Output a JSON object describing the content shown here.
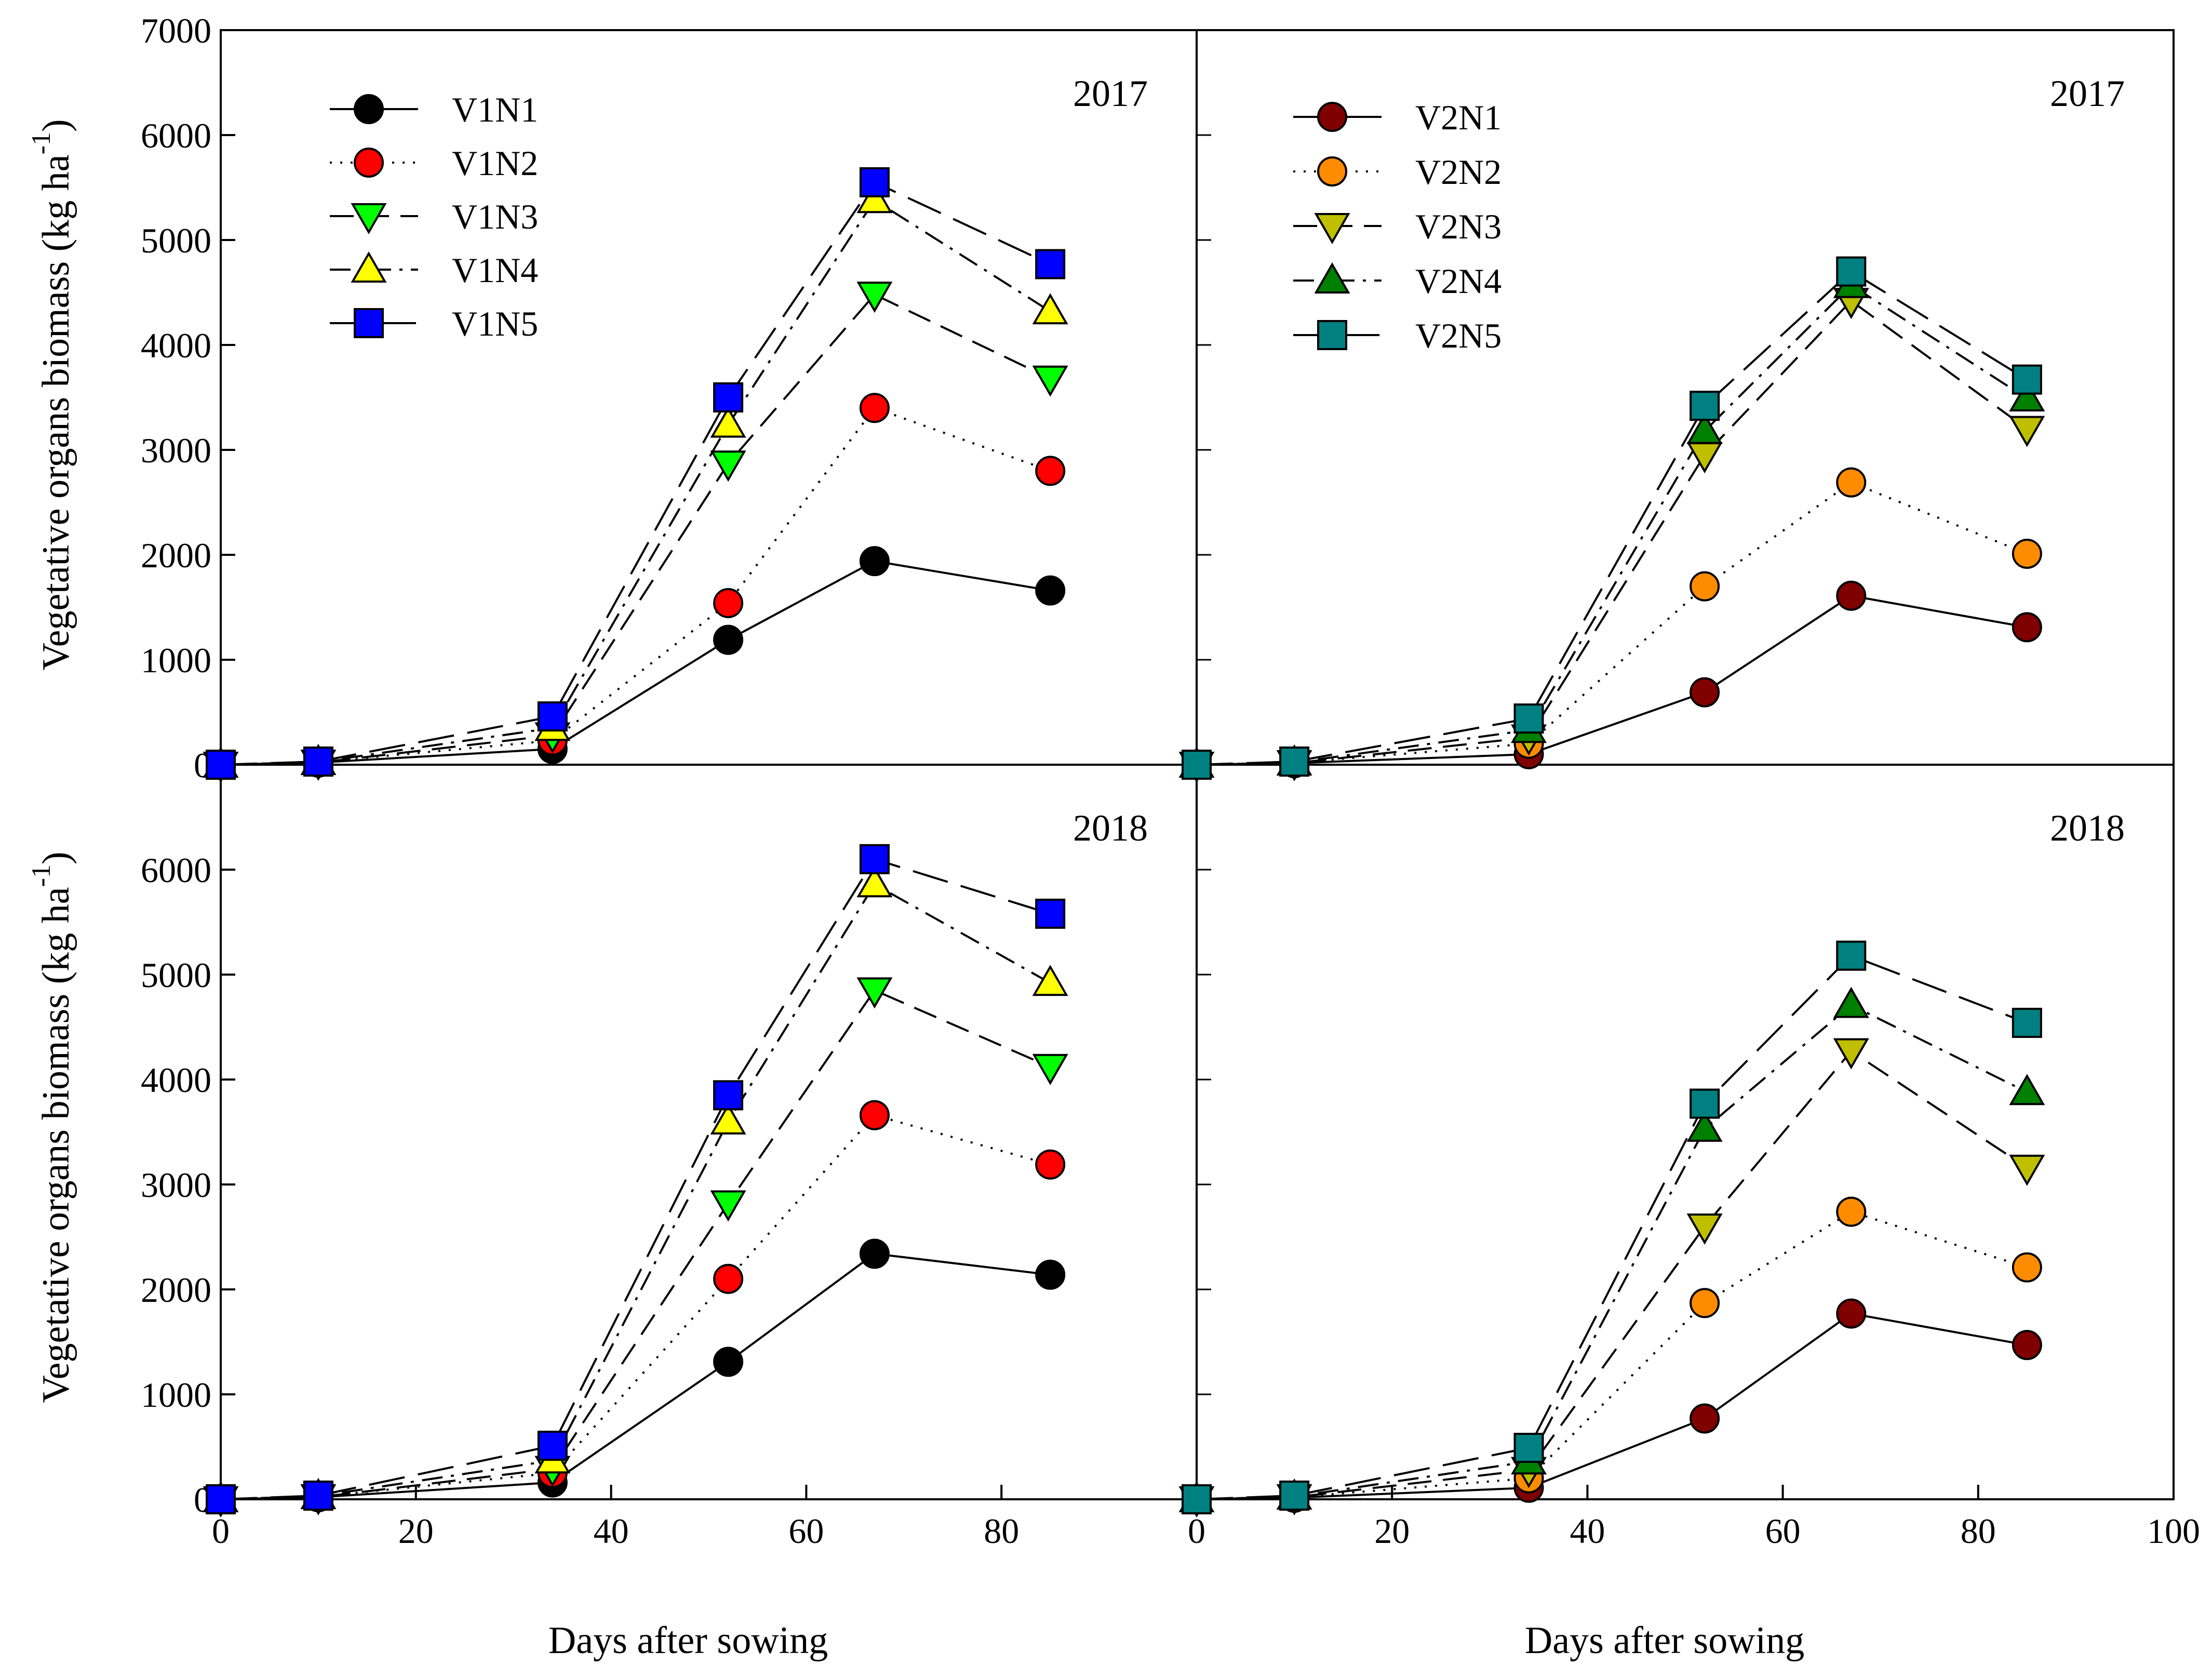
{
  "chart_data": {
    "type": "line",
    "title": "",
    "xlabel": "Days after sowing",
    "ylabel": "Vegetative organs biomass (kg ha",
    "ylabel_sup": "-1",
    "ylabel_close": ")",
    "xlim": [
      0,
      100
    ],
    "ylim": [
      0,
      7000
    ],
    "x_ticks": [
      0,
      20,
      40,
      60,
      80
    ],
    "x_ticks_right": [
      0,
      20,
      40,
      60,
      80,
      100
    ],
    "y_ticks_top": [
      0,
      1000,
      2000,
      3000,
      4000,
      5000,
      6000,
      7000
    ],
    "y_ticks_bottom": [
      0,
      1000,
      2000,
      3000,
      4000,
      5000,
      6000
    ],
    "x": [
      0,
      10,
      34,
      52,
      67,
      85
    ],
    "panels": [
      {
        "id": "v1-2017",
        "year_label": "2017",
        "series": [
          {
            "name": "V1N1",
            "marker": "circle",
            "fill": "#000000",
            "dash": "solid",
            "values": [
              0,
              20,
              150,
              1190,
              1940,
              1660
            ]
          },
          {
            "name": "V1N2",
            "marker": "circle",
            "fill": "#ff0000",
            "dash": "dotted",
            "values": [
              0,
              25,
              230,
              1540,
              3400,
              2800
            ]
          },
          {
            "name": "V1N3",
            "marker": "triangle-down",
            "fill": "#00ff00",
            "dash": "dashed",
            "values": [
              0,
              20,
              280,
              2870,
              4480,
              3680
            ]
          },
          {
            "name": "V1N4",
            "marker": "triangle-up",
            "fill": "#ffff00",
            "dash": "dashdot",
            "values": [
              0,
              25,
              350,
              3240,
              5380,
              4320
            ]
          },
          {
            "name": "V1N5",
            "marker": "square",
            "fill": "#0000ff",
            "dash": "longdash",
            "values": [
              0,
              30,
              460,
              3500,
              5550,
              4770
            ]
          }
        ]
      },
      {
        "id": "v2-2017",
        "year_label": "2017",
        "series": [
          {
            "name": "V2N1",
            "marker": "circle",
            "fill": "#800000",
            "dash": "solid",
            "values": [
              0,
              15,
              100,
              690,
              1610,
              1310
            ]
          },
          {
            "name": "V2N2",
            "marker": "circle",
            "fill": "#ff8c00",
            "dash": "dotted",
            "values": [
              0,
              20,
              200,
              1700,
              2690,
              2010
            ]
          },
          {
            "name": "V2N3",
            "marker": "triangle-down",
            "fill": "#bfbf00",
            "dash": "dashed",
            "values": [
              0,
              15,
              260,
              2950,
              4420,
              3200
            ]
          },
          {
            "name": "V2N4",
            "marker": "triangle-up",
            "fill": "#008000",
            "dash": "dashdot",
            "values": [
              0,
              20,
              330,
              3180,
              4570,
              3490
            ]
          },
          {
            "name": "V2N5",
            "marker": "square",
            "fill": "#008080",
            "dash": "longdash",
            "values": [
              0,
              30,
              440,
              3420,
              4700,
              3670
            ]
          }
        ]
      },
      {
        "id": "v1-2018",
        "year_label": "2018",
        "series": [
          {
            "name": "V1N1",
            "marker": "circle",
            "fill": "#000000",
            "dash": "solid",
            "values": [
              0,
              20,
              160,
              1310,
              2340,
              2140
            ]
          },
          {
            "name": "V1N2",
            "marker": "circle",
            "fill": "#ff0000",
            "dash": "dotted",
            "values": [
              0,
              25,
              250,
              2100,
              3660,
              3190
            ]
          },
          {
            "name": "V1N3",
            "marker": "triangle-down",
            "fill": "#00ff00",
            "dash": "dashed",
            "values": [
              0,
              20,
              290,
              2820,
              4850,
              4120
            ]
          },
          {
            "name": "V1N4",
            "marker": "triangle-up",
            "fill": "#ffff00",
            "dash": "dashdot",
            "values": [
              0,
              30,
              370,
              3600,
              5860,
              4920
            ]
          },
          {
            "name": "V1N5",
            "marker": "square",
            "fill": "#0000ff",
            "dash": "longdash",
            "values": [
              0,
              35,
              510,
              3850,
              6100,
              5580
            ]
          }
        ]
      },
      {
        "id": "v2-2018",
        "year_label": "2018",
        "series": [
          {
            "name": "V2N1",
            "marker": "circle",
            "fill": "#800000",
            "dash": "solid",
            "values": [
              0,
              15,
              110,
              770,
              1770,
              1470
            ]
          },
          {
            "name": "V2N2",
            "marker": "circle",
            "fill": "#ff8c00",
            "dash": "dotted",
            "values": [
              0,
              20,
              200,
              1870,
              2740,
              2210
            ]
          },
          {
            "name": "V2N3",
            "marker": "triangle-down",
            "fill": "#bfbf00",
            "dash": "dashed",
            "values": [
              0,
              20,
              280,
              2600,
              4270,
              3160
            ]
          },
          {
            "name": "V2N4",
            "marker": "triangle-up",
            "fill": "#008000",
            "dash": "dashdot",
            "values": [
              0,
              25,
              360,
              3530,
              4710,
              3880
            ]
          },
          {
            "name": "V2N5",
            "marker": "square",
            "fill": "#008080",
            "dash": "longdash",
            "values": [
              0,
              35,
              490,
              3770,
              5180,
              4540
            ]
          }
        ]
      }
    ],
    "legend": {
      "placement": "top-left",
      "panels": [
        "v1-2017",
        "v2-2017"
      ]
    }
  }
}
